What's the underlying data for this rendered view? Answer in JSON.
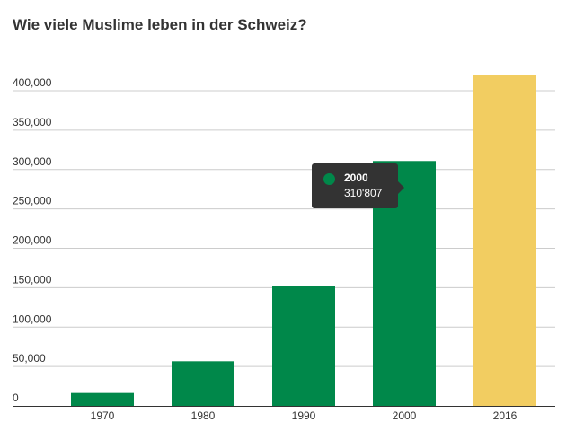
{
  "title": "Wie viele Muslime leben in der Schweiz?",
  "tooltip": {
    "category": "2000",
    "value_text": "310'807",
    "color": "#00884a"
  },
  "chart_data": {
    "type": "bar",
    "title": "Wie viele Muslime leben in der Schweiz?",
    "xlabel": "",
    "ylabel": "",
    "categories": [
      "1970",
      "1980",
      "1990",
      "2000",
      "2016"
    ],
    "values": [
      16353,
      56625,
      152217,
      310807,
      420000
    ],
    "colors": [
      "#00884a",
      "#00884a",
      "#00884a",
      "#00884a",
      "#f2cd61"
    ],
    "ylim": [
      0,
      400000
    ],
    "yticks": [
      0,
      50000,
      100000,
      150000,
      200000,
      250000,
      300000,
      350000,
      400000
    ],
    "ytick_labels": [
      "0",
      "50,000",
      "100,000",
      "150,000",
      "200,000",
      "250,000",
      "300,000",
      "350,000",
      "400,000"
    ],
    "grid": true,
    "legend": "none"
  }
}
